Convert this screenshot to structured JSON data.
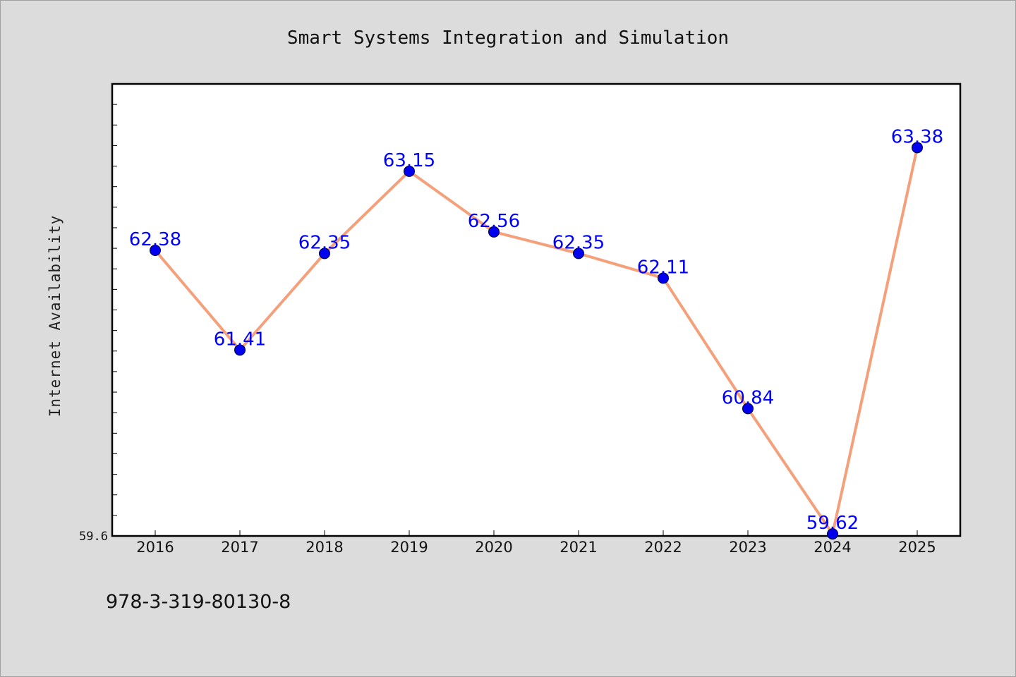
{
  "chart_data": {
    "type": "line",
    "title": "Smart Systems Integration and Simulation",
    "ylabel": "Internet Availability",
    "xlabel": "",
    "categories": [
      "2016",
      "2017",
      "2018",
      "2019",
      "2020",
      "2021",
      "2022",
      "2023",
      "2024",
      "2025"
    ],
    "values": [
      62.38,
      61.41,
      62.35,
      63.15,
      62.56,
      62.35,
      62.11,
      60.84,
      59.62,
      63.38
    ],
    "data_labels": [
      "62.38",
      "61.41",
      "62.35",
      "63.15",
      "62.56",
      "62.35",
      "62.11",
      "60.84",
      "59.62",
      "63.38"
    ],
    "y_tick_labels": [
      "59.6"
    ],
    "ylim": [
      59.6,
      64.0
    ],
    "grid": false,
    "legend": "none",
    "colors": {
      "line": "#f4a07a",
      "marker": "#0000ee",
      "data_label": "#0000ff",
      "plot_background": "#ffffff",
      "page_background": "#dcdcdc"
    }
  },
  "footer": {
    "isbn": "978-3-319-80130-8"
  }
}
